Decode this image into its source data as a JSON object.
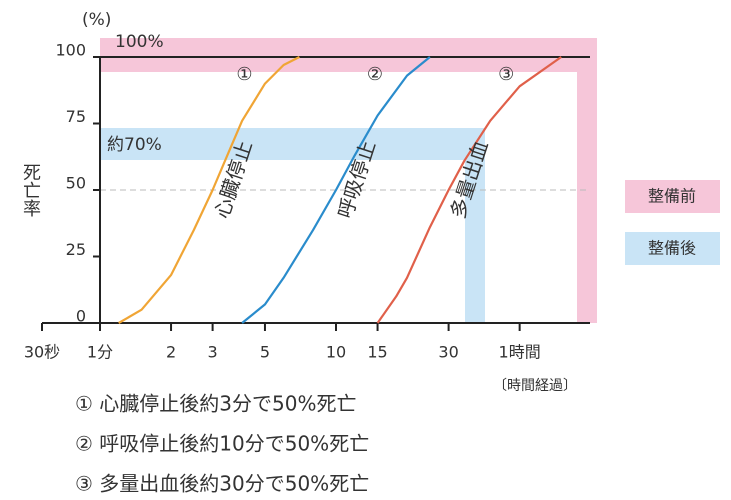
{
  "chart_data": {
    "type": "line",
    "y_unit": "(%)",
    "ylabel": "死亡率",
    "xlabel": "〔時間経過〕",
    "log_x": true,
    "xlim": [
      0.5,
      120
    ],
    "ylim": [
      0,
      100
    ],
    "xticks": [
      {
        "value": 0.5,
        "label": "30秒"
      },
      {
        "value": 1,
        "label": "1分"
      },
      2,
      3,
      5,
      10,
      15,
      30,
      {
        "value": 60,
        "label": "1時間"
      }
    ],
    "yticks": [
      0,
      25,
      50,
      75,
      100
    ],
    "reference_line": 50,
    "series": [
      {
        "name": "心臓停止",
        "marker": "①",
        "color": "#f0a535",
        "x": [
          1.2,
          1.5,
          2,
          2.5,
          3,
          3.5,
          4,
          5,
          6,
          7
        ],
        "values": [
          0,
          5,
          18,
          35,
          50,
          64,
          76,
          90,
          97,
          100
        ]
      },
      {
        "name": "呼吸停止",
        "marker": "②",
        "color": "#2a8ccc",
        "x": [
          4,
          5,
          6,
          8,
          10,
          12,
          15,
          20,
          25
        ],
        "values": [
          0,
          7,
          17,
          35,
          50,
          63,
          78,
          93,
          100
        ]
      },
      {
        "name": "多量出血",
        "marker": "③",
        "color": "#e0604a",
        "x": [
          15,
          18,
          20,
          25,
          30,
          35,
          45,
          60,
          90
        ],
        "values": [
          0,
          10,
          17,
          36,
          50,
          61,
          76,
          89,
          100
        ]
      }
    ],
    "annotations": [
      {
        "text": "100%",
        "color": "#e0408a"
      },
      {
        "text": "約70%",
        "color": "#1a70b0"
      }
    ],
    "legend": [
      {
        "name": "整備前",
        "color": "#f6c6d9",
        "text_color": "#e0408a"
      },
      {
        "name": "整備後",
        "color": "#c9e4f6",
        "text_color": "#1a70b0"
      }
    ],
    "notes": [
      "① 心臓停止後約3分で50%死亡",
      "② 呼吸停止後約10分で50%死亡",
      "③ 多量出血後約30分で50%死亡"
    ]
  }
}
